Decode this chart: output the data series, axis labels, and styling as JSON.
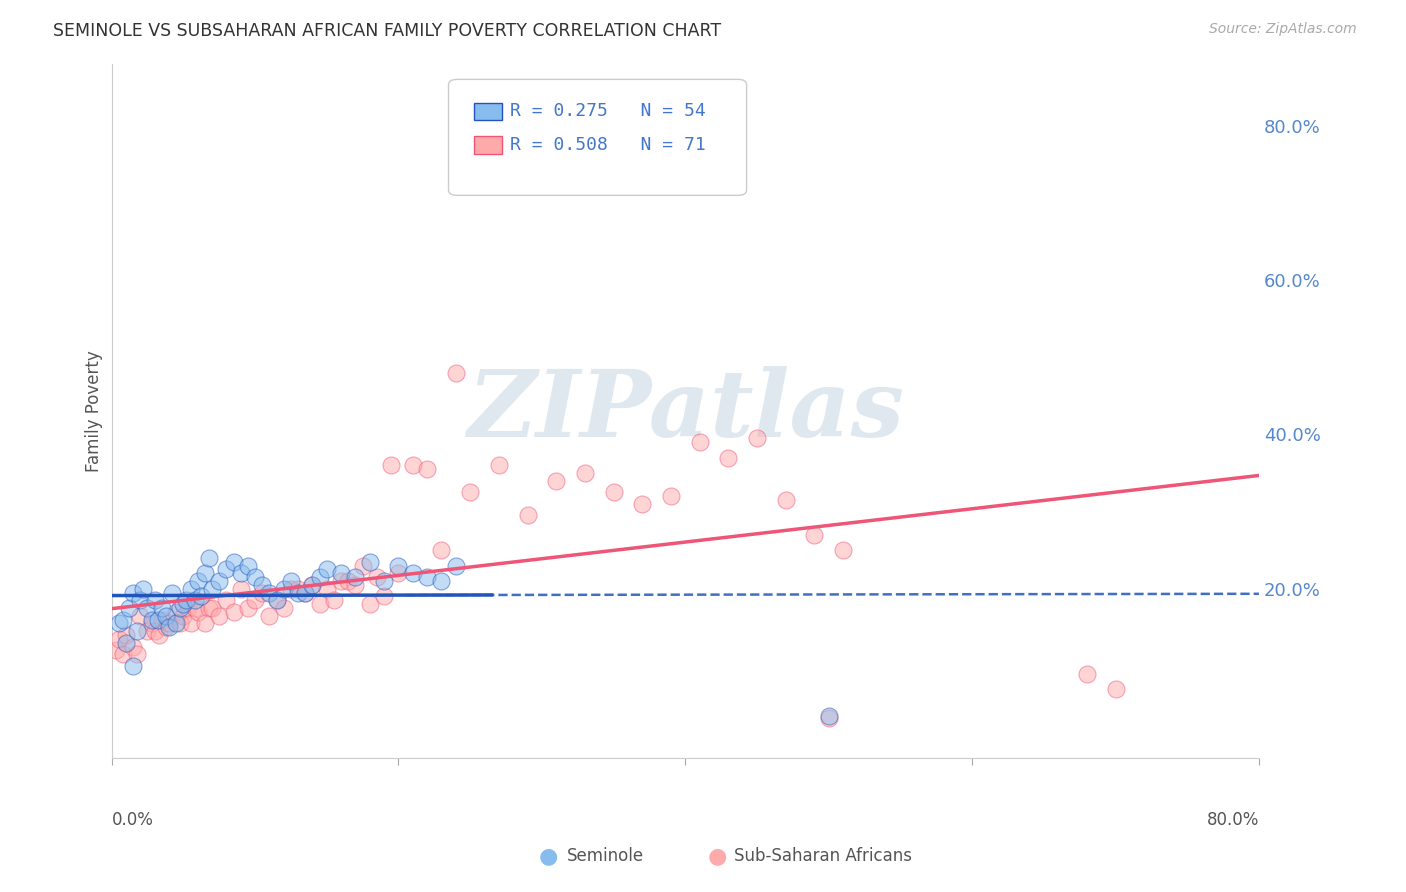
{
  "title": "SEMINOLE VS SUBSAHARAN AFRICAN FAMILY POVERTY CORRELATION CHART",
  "source": "Source: ZipAtlas.com",
  "ylabel": "Family Poverty",
  "ytick_labels": [
    "80.0%",
    "60.0%",
    "40.0%",
    "20.0%"
  ],
  "ytick_values": [
    0.8,
    0.6,
    0.4,
    0.2
  ],
  "xlim": [
    0.0,
    0.8
  ],
  "ylim": [
    -0.02,
    0.88
  ],
  "legend_r1": "R = 0.275",
  "legend_n1": "N = 54",
  "legend_r2": "R = 0.508",
  "legend_n2": "N = 71",
  "color_seminole": "#88bbee",
  "color_subsaharan": "#ffaaaa",
  "trendline_seminole_color": "#2255bb",
  "trendline_subsaharan_color": "#ee5577",
  "background_color": "#ffffff",
  "watermark": "ZIPatlas",
  "seminole_x": [
    0.005,
    0.008,
    0.01,
    0.012,
    0.015,
    0.018,
    0.02,
    0.022,
    0.025,
    0.028,
    0.03,
    0.032,
    0.035,
    0.038,
    0.04,
    0.042,
    0.045,
    0.048,
    0.05,
    0.052,
    0.055,
    0.058,
    0.06,
    0.062,
    0.065,
    0.068,
    0.07,
    0.075,
    0.08,
    0.085,
    0.09,
    0.095,
    0.1,
    0.105,
    0.11,
    0.115,
    0.12,
    0.125,
    0.13,
    0.135,
    0.14,
    0.145,
    0.15,
    0.16,
    0.17,
    0.18,
    0.19,
    0.2,
    0.21,
    0.22,
    0.23,
    0.24,
    0.5,
    0.015
  ],
  "seminole_y": [
    0.155,
    0.16,
    0.13,
    0.175,
    0.195,
    0.145,
    0.185,
    0.2,
    0.175,
    0.16,
    0.185,
    0.16,
    0.175,
    0.165,
    0.15,
    0.195,
    0.155,
    0.175,
    0.18,
    0.185,
    0.2,
    0.185,
    0.21,
    0.19,
    0.22,
    0.24,
    0.2,
    0.21,
    0.225,
    0.235,
    0.22,
    0.23,
    0.215,
    0.205,
    0.195,
    0.185,
    0.2,
    0.21,
    0.195,
    0.195,
    0.205,
    0.215,
    0.225,
    0.22,
    0.215,
    0.235,
    0.21,
    0.23,
    0.22,
    0.215,
    0.21,
    0.23,
    0.035,
    0.1
  ],
  "subsaharan_x": [
    0.003,
    0.005,
    0.008,
    0.01,
    0.015,
    0.018,
    0.02,
    0.025,
    0.028,
    0.03,
    0.033,
    0.035,
    0.038,
    0.04,
    0.045,
    0.048,
    0.05,
    0.053,
    0.055,
    0.058,
    0.06,
    0.065,
    0.068,
    0.07,
    0.075,
    0.08,
    0.085,
    0.09,
    0.095,
    0.1,
    0.105,
    0.11,
    0.115,
    0.12,
    0.125,
    0.13,
    0.135,
    0.14,
    0.145,
    0.15,
    0.155,
    0.16,
    0.165,
    0.17,
    0.175,
    0.18,
    0.185,
    0.19,
    0.195,
    0.2,
    0.21,
    0.22,
    0.23,
    0.24,
    0.25,
    0.27,
    0.29,
    0.31,
    0.33,
    0.35,
    0.37,
    0.39,
    0.41,
    0.43,
    0.45,
    0.47,
    0.49,
    0.51,
    0.68,
    0.7,
    0.5
  ],
  "subsaharan_y": [
    0.12,
    0.135,
    0.115,
    0.14,
    0.125,
    0.115,
    0.165,
    0.145,
    0.155,
    0.145,
    0.14,
    0.16,
    0.15,
    0.155,
    0.17,
    0.155,
    0.165,
    0.175,
    0.155,
    0.175,
    0.17,
    0.155,
    0.175,
    0.175,
    0.165,
    0.185,
    0.17,
    0.2,
    0.175,
    0.185,
    0.195,
    0.165,
    0.185,
    0.175,
    0.2,
    0.2,
    0.195,
    0.205,
    0.18,
    0.2,
    0.185,
    0.21,
    0.21,
    0.205,
    0.23,
    0.18,
    0.215,
    0.19,
    0.36,
    0.22,
    0.36,
    0.355,
    0.25,
    0.48,
    0.325,
    0.36,
    0.295,
    0.34,
    0.35,
    0.325,
    0.31,
    0.32,
    0.39,
    0.37,
    0.395,
    0.315,
    0.27,
    0.25,
    0.09,
    0.07,
    0.032
  ]
}
